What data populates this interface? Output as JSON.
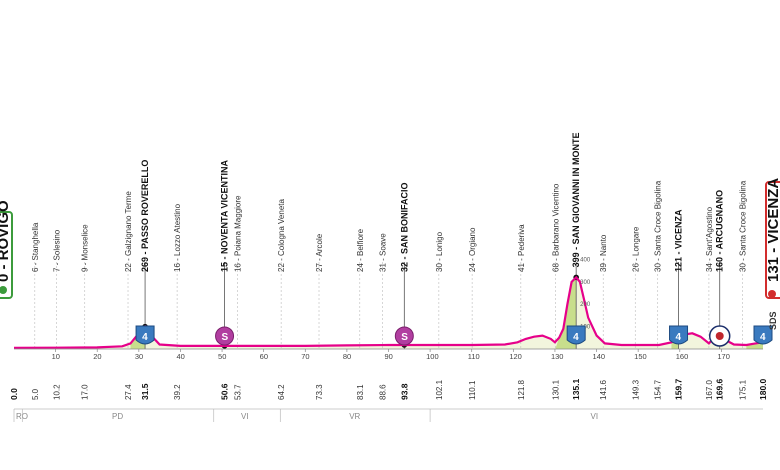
{
  "start": {
    "label": "0 - ROVIGO"
  },
  "finish": {
    "label": "131 - VICENZA",
    "sds": "SDS"
  },
  "waypoints": [
    {
      "km": 0.0,
      "km_label": "0.0",
      "name": "",
      "bold": true
    },
    {
      "km": 5.0,
      "km_label": "5.0",
      "name": "6 - Stanghella",
      "bold": false
    },
    {
      "km": 10.2,
      "km_label": "10.2",
      "name": "7 - Solesino",
      "bold": false
    },
    {
      "km": 17.0,
      "km_label": "17.0",
      "name": "9 - Monselice",
      "bold": false
    },
    {
      "km": 27.4,
      "km_label": "27.4",
      "name": "22 - Galzignano Terme",
      "bold": false
    },
    {
      "km": 31.5,
      "km_label": "31.5",
      "name": "269 - PASSO ROVERELLO",
      "bold": true
    },
    {
      "km": 39.2,
      "km_label": "39.2",
      "name": "16 - Lozzo Atestino",
      "bold": false
    },
    {
      "km": 50.6,
      "km_label": "50.6",
      "name": "15 - NOVENTA VICENTINA",
      "bold": true
    },
    {
      "km": 53.7,
      "km_label": "53.7",
      "name": "16 - Poiana Maggiore",
      "bold": false
    },
    {
      "km": 64.2,
      "km_label": "64.2",
      "name": "22 - Cologna Veneta",
      "bold": false
    },
    {
      "km": 73.3,
      "km_label": "73.3",
      "name": "27 - Arcole",
      "bold": false
    },
    {
      "km": 83.1,
      "km_label": "83.1",
      "name": "24 - Belfiore",
      "bold": false
    },
    {
      "km": 88.6,
      "km_label": "88.6",
      "name": "31 - Soave",
      "bold": false
    },
    {
      "km": 93.8,
      "km_label": "93.8",
      "name": "32 - SAN BONIFACIO",
      "bold": true
    },
    {
      "km": 102.1,
      "km_label": "102.1",
      "name": "30 - Lonigo",
      "bold": false
    },
    {
      "km": 110.1,
      "km_label": "110.1",
      "name": "24 - Orgiano",
      "bold": false
    },
    {
      "km": 121.8,
      "km_label": "121.8",
      "name": "41 - Pederiva",
      "bold": false
    },
    {
      "km": 130.1,
      "km_label": "130.1",
      "name": "68 - Barbarano Vicentino",
      "bold": false
    },
    {
      "km": 135.1,
      "km_label": "135.1",
      "name": "399 - SAN GIOVANNI IN MONTE",
      "bold": true
    },
    {
      "km": 141.6,
      "km_label": "141.6",
      "name": "39 - Nanto",
      "bold": false
    },
    {
      "km": 149.3,
      "km_label": "149.3",
      "name": "26 - Longare",
      "bold": false
    },
    {
      "km": 154.7,
      "km_label": "154.7",
      "name": "30 - Santa Croce Bigolina",
      "bold": false
    },
    {
      "km": 159.7,
      "km_label": "159.7",
      "name": "121 - VICENZA",
      "bold": true
    },
    {
      "km": 167.0,
      "km_label": "167.0",
      "name": "34 - Sant'Agostino",
      "bold": false
    },
    {
      "km": 169.6,
      "km_label": "169.6",
      "name": "160 - ARCUGNANO",
      "bold": true
    },
    {
      "km": 175.1,
      "km_label": "175.1",
      "name": "30 - Santa Croce Bigolina",
      "bold": false
    },
    {
      "km": 180.0,
      "km_label": "180.0",
      "name": "",
      "bold": true
    }
  ],
  "axis_ticks": [
    "10",
    "20",
    "30",
    "40",
    "50",
    "60",
    "70",
    "80",
    "90",
    "100",
    "110",
    "120",
    "130",
    "140",
    "150",
    "160",
    "170"
  ],
  "elevation_scale": [
    "400",
    "300",
    "200",
    "100"
  ],
  "badges": [
    {
      "km": 31.5,
      "kind": "gpm",
      "text": "4",
      "color": "#3a7abf"
    },
    {
      "km": 50.6,
      "kind": "sprint",
      "text": "S",
      "color": "#b13ea0"
    },
    {
      "km": 93.8,
      "kind": "sprint",
      "text": "S",
      "color": "#b13ea0"
    },
    {
      "km": 135.1,
      "kind": "gpm",
      "text": "4",
      "color": "#3a7abf"
    },
    {
      "km": 159.7,
      "kind": "gpm",
      "text": "4",
      "color": "#3a7abf"
    },
    {
      "km": 169.6,
      "kind": "bonus",
      "text": "",
      "color": "#c0272d"
    },
    {
      "km": 180.0,
      "kind": "gpm",
      "text": "4",
      "color": "#3a7abf"
    }
  ],
  "provinces": [
    {
      "code": "RO",
      "from": 0,
      "to": 2
    },
    {
      "code": "PD",
      "from": 2,
      "to": 48
    },
    {
      "code": "VI",
      "from": 48,
      "to": 64
    },
    {
      "code": "VR",
      "from": 64,
      "to": 100
    },
    {
      "code": "VI",
      "from": 100,
      "to": 180
    }
  ],
  "colors": {
    "profile": "#e6008a",
    "fill": "#f2f5dd",
    "climb": "#c8de8c",
    "start": "#3c9b3c",
    "finish": "#d22d2d"
  }
}
